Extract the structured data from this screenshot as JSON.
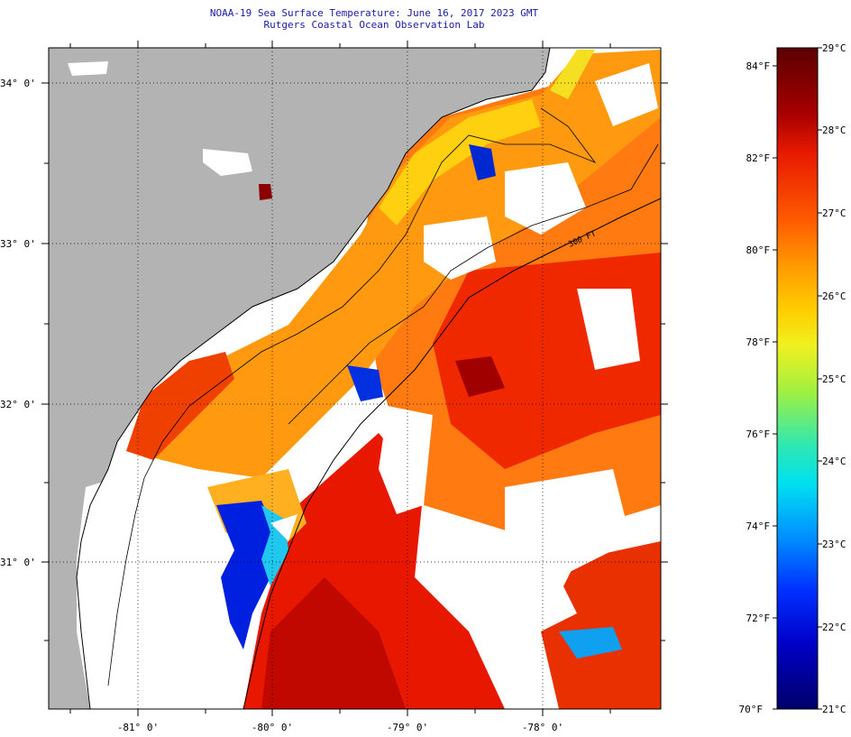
{
  "title_line1": "NOAA-19 Sea Surface Temperature:  June 16, 2017 2023 GMT",
  "title_line2": "Rutgers Coastal Ocean Observation Lab",
  "map": {
    "lat_labels": [
      "34° 0'",
      "33° 0'",
      "32° 0'",
      "31° 0'"
    ],
    "lon_labels": [
      "-81° 0'",
      "-80° 0'",
      "-79° 0'",
      "-78° 0'"
    ],
    "isobath_label": "300 FT",
    "land_color": "#b3b3b3",
    "cloud_color": "#ffffff"
  },
  "colorbar": {
    "celsius": [
      "29°C",
      "28°C",
      "27°C",
      "26°C",
      "25°C",
      "24°C",
      "23°C",
      "22°C",
      "21°C"
    ],
    "fahrenheit": [
      "84°F",
      "82°F",
      "80°F",
      "78°F",
      "76°F",
      "74°F",
      "72°F",
      "70°F"
    ],
    "colors_top_to_bottom": [
      "#5a0000",
      "#a80000",
      "#e81a00",
      "#ff6a00",
      "#ffb000",
      "#ffe000",
      "#b8f020",
      "#40e8a0",
      "#00e0f0",
      "#0090ff",
      "#0030ff",
      "#0000b0",
      "#00006a"
    ]
  }
}
